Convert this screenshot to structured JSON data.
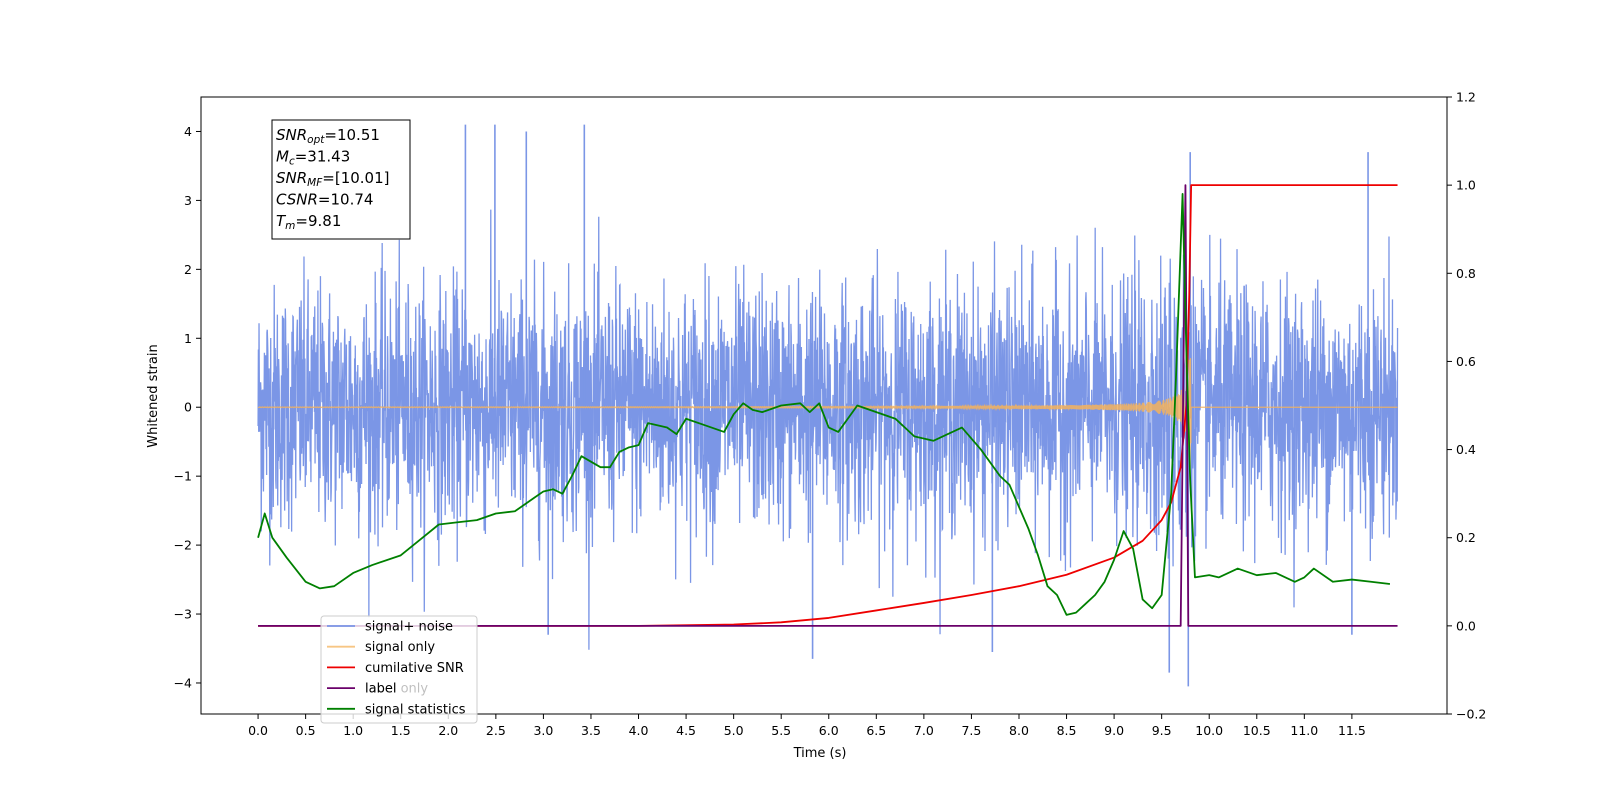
{
  "chart_data": {
    "type": "line",
    "title": "",
    "xlabel": "Time (s)",
    "ylabel": "Whitened strain",
    "y2label": "",
    "xlim": [
      -0.6,
      12.5
    ],
    "ylim": [
      -4.45,
      4.5
    ],
    "y2lim": [
      -0.2,
      1.2
    ],
    "xticks": [
      0.0,
      0.5,
      1.0,
      1.5,
      2.0,
      2.5,
      3.0,
      3.5,
      4.0,
      4.5,
      5.0,
      5.5,
      6.0,
      6.5,
      7.0,
      7.5,
      8.0,
      8.5,
      9.0,
      9.5,
      10.0,
      10.5,
      11.0,
      11.5
    ],
    "xtick_labels": [
      "0.0",
      "0.5",
      "1.0",
      "1.5",
      "2.0",
      "2.5",
      "3.0",
      "3.5",
      "4.0",
      "4.5",
      "5.0",
      "5.5",
      "6.0",
      "6.5",
      "7.0",
      "7.5",
      "8.0",
      "8.5",
      "9.0",
      "9.5",
      "10.0",
      "10.5",
      "11.0",
      "11.5"
    ],
    "yticks": [
      -4,
      -3,
      -2,
      -1,
      0,
      1,
      2,
      3,
      4
    ],
    "ytick_labels": [
      "−4",
      "−3",
      "−2",
      "−1",
      "0",
      "1",
      "2",
      "3",
      "4"
    ],
    "y2ticks": [
      -0.2,
      0.0,
      0.2,
      0.4,
      0.6,
      0.8,
      1.0,
      1.2
    ],
    "y2tick_labels": [
      "−0.2",
      "0.0",
      "0.2",
      "0.4",
      "0.6",
      "0.8",
      "1.0",
      "1.2"
    ],
    "grid": false,
    "legend_position": "lower-left",
    "annotation": {
      "lines": [
        {
          "main": "SNR",
          "sub": "opt",
          "rest": "=10.51"
        },
        {
          "main": "M",
          "sub": "c",
          "rest": "=31.43"
        },
        {
          "main": "SNR",
          "sub": "MF",
          "rest": "=[10.01]"
        },
        {
          "main": "CSNR",
          "sub": "",
          "rest": "=10.74"
        },
        {
          "main": "T",
          "sub": "m",
          "rest": "=9.81"
        }
      ]
    },
    "series": [
      {
        "name": "signal+ noise",
        "axis": "left",
        "color": "#7b96e6",
        "kind": "noise",
        "x_range": [
          0.0,
          11.98
        ],
        "envelope_2sigma": [
          -1.75,
          1.75
        ],
        "spikes": [
          {
            "x": 2.18,
            "y": 4.1
          },
          {
            "x": 2.49,
            "y": 4.1
          },
          {
            "x": 2.82,
            "y": 4.0
          },
          {
            "x": 3.43,
            "y": 4.1
          },
          {
            "x": 9.8,
            "y": 3.7
          },
          {
            "x": 11.67,
            "y": 3.7
          },
          {
            "x": 9.78,
            "y": -4.05
          },
          {
            "x": 9.58,
            "y": -3.85
          },
          {
            "x": 5.83,
            "y": -3.65
          },
          {
            "x": 7.72,
            "y": -3.55
          },
          {
            "x": 3.05,
            "y": -3.3
          },
          {
            "x": 11.5,
            "y": -3.3
          }
        ]
      },
      {
        "name": "signal only",
        "axis": "left",
        "color": "#f5b35c",
        "kind": "chirp",
        "x_range": [
          0.0,
          11.98
        ],
        "merger_time": 9.81,
        "peak_amplitude": 1.3
      },
      {
        "name": "cumilative SNR",
        "axis": "right",
        "color": "#ee0000",
        "x": [
          0.0,
          4.0,
          5.0,
          5.5,
          6.0,
          6.5,
          7.0,
          7.5,
          8.0,
          8.5,
          9.0,
          9.3,
          9.5,
          9.6,
          9.7,
          9.76,
          9.79,
          9.81,
          11.98
        ],
        "y": [
          0.0,
          0.0,
          0.003,
          0.008,
          0.018,
          0.035,
          0.052,
          0.07,
          0.09,
          0.116,
          0.155,
          0.193,
          0.24,
          0.28,
          0.36,
          0.5,
          0.75,
          1.0,
          1.0
        ]
      },
      {
        "name": "label",
        "axis": "right",
        "color": "#6a006a",
        "x": [
          0.0,
          9.7,
          9.75,
          9.78,
          11.98
        ],
        "y": [
          0.0,
          0.0,
          1.0,
          0.0,
          0.0
        ]
      },
      {
        "name": "label only",
        "axis": "right",
        "color": "#6a006a",
        "x": [],
        "y": []
      },
      {
        "name": "signal statistics",
        "axis": "right",
        "color": "#008000",
        "x": [
          0.0,
          0.07,
          0.15,
          0.3,
          0.5,
          0.65,
          0.8,
          1.0,
          1.2,
          1.5,
          1.7,
          1.9,
          2.1,
          2.3,
          2.5,
          2.7,
          2.9,
          3.0,
          3.1,
          3.2,
          3.3,
          3.4,
          3.6,
          3.7,
          3.8,
          3.9,
          4.0,
          4.1,
          4.3,
          4.4,
          4.5,
          4.7,
          4.9,
          5.0,
          5.1,
          5.2,
          5.3,
          5.5,
          5.7,
          5.8,
          5.9,
          6.0,
          6.1,
          6.2,
          6.3,
          6.5,
          6.7,
          6.9,
          7.1,
          7.3,
          7.4,
          7.6,
          7.8,
          7.9,
          8.0,
          8.1,
          8.2,
          8.3,
          8.4,
          8.5,
          8.6,
          8.7,
          8.8,
          8.9,
          9.0,
          9.1,
          9.2,
          9.3,
          9.4,
          9.5,
          9.6,
          9.65,
          9.72,
          9.76,
          9.8,
          9.85,
          10.0,
          10.1,
          10.3,
          10.5,
          10.7,
          10.9,
          11.0,
          11.1,
          11.3,
          11.5,
          11.7,
          11.9
        ],
        "y": [
          0.2,
          0.255,
          0.2,
          0.155,
          0.1,
          0.085,
          0.09,
          0.12,
          0.138,
          0.16,
          0.195,
          0.23,
          0.235,
          0.24,
          0.255,
          0.26,
          0.29,
          0.305,
          0.31,
          0.3,
          0.34,
          0.385,
          0.36,
          0.36,
          0.395,
          0.405,
          0.41,
          0.46,
          0.45,
          0.435,
          0.47,
          0.455,
          0.44,
          0.48,
          0.505,
          0.49,
          0.485,
          0.5,
          0.505,
          0.485,
          0.505,
          0.45,
          0.44,
          0.47,
          0.5,
          0.485,
          0.47,
          0.43,
          0.42,
          0.44,
          0.45,
          0.4,
          0.34,
          0.32,
          0.27,
          0.22,
          0.16,
          0.09,
          0.07,
          0.025,
          0.03,
          0.05,
          0.07,
          0.1,
          0.15,
          0.215,
          0.175,
          0.06,
          0.04,
          0.07,
          0.3,
          0.56,
          0.98,
          0.62,
          0.33,
          0.11,
          0.115,
          0.11,
          0.13,
          0.115,
          0.12,
          0.1,
          0.11,
          0.13,
          0.1,
          0.105,
          0.1,
          0.095
        ]
      }
    ]
  }
}
